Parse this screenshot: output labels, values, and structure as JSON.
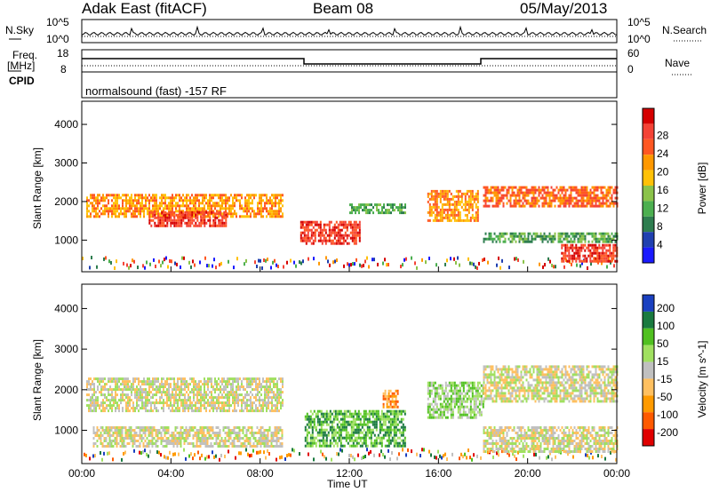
{
  "header": {
    "station": "Adak East (fitACF)",
    "beam": "Beam 08",
    "date": "05/May/2013"
  },
  "strip_labels": {
    "nsky": "N.Sky",
    "nsky_ticks": [
      "10^5",
      "10^0"
    ],
    "nsearch": "N.Search",
    "nsearch_ticks": [
      "10^5",
      "10^0"
    ],
    "freq": "Freq.",
    "freq_unit": "[MHz]",
    "freq_ticks": [
      "18",
      "8"
    ],
    "nave": "Nave",
    "nave_ticks": [
      "60",
      "0"
    ],
    "cpid": "CPID",
    "cpid_value": "normalsound (fast) -157 RF"
  },
  "colors": {
    "power": [
      "#1a1aff",
      "#2040b0",
      "#2e7d4f",
      "#4caf50",
      "#8bc34a",
      "#ffc107",
      "#ff9800",
      "#ff5722",
      "#f44336",
      "#d50000"
    ],
    "velocity": [
      "#e00000",
      "#ff5a00",
      "#ff9a00",
      "#ffc060",
      "#c0c0c0",
      "#a0e060",
      "#50c020",
      "#1a7a40",
      "#1a40c0"
    ]
  },
  "chart_data": [
    {
      "type": "heatmap",
      "name": "power",
      "ylabel": "Slant Range [km]",
      "xlabel": "",
      "x_ticks": [
        "00:00",
        "04:00",
        "08:00",
        "12:00",
        "16:00",
        "20:00",
        "00:00"
      ],
      "y_ticks": [
        "1000",
        "2000",
        "3000",
        "4000"
      ],
      "ylim": [
        180,
        4600
      ],
      "xlim_hours": [
        0,
        24
      ],
      "colorbar_label": "Power [dB]",
      "colorbar_ticks": [
        "4",
        "8",
        "12",
        "16",
        "20",
        "24",
        "28"
      ],
      "bands": [
        {
          "t0": 0.2,
          "t1": 9.0,
          "r0": 1600,
          "r1": 2200,
          "level": 6
        },
        {
          "t0": 3.0,
          "t1": 6.5,
          "r0": 1400,
          "r1": 1750,
          "level": 8
        },
        {
          "t0": 9.8,
          "t1": 12.5,
          "r0": 900,
          "r1": 1500,
          "level": 8
        },
        {
          "t0": 12.0,
          "t1": 14.5,
          "r0": 1700,
          "r1": 1950,
          "level": 3
        },
        {
          "t0": 15.5,
          "t1": 17.8,
          "r0": 1500,
          "r1": 2300,
          "level": 6
        },
        {
          "t0": 18.0,
          "t1": 24.0,
          "r0": 1900,
          "r1": 2400,
          "level": 7
        },
        {
          "t0": 18.0,
          "t1": 24.0,
          "r0": 950,
          "r1": 1200,
          "level": 3
        },
        {
          "t0": 21.5,
          "t1": 24.0,
          "r0": 450,
          "r1": 900,
          "level": 8
        }
      ]
    },
    {
      "type": "heatmap",
      "name": "velocity",
      "ylabel": "Slant Range [km]",
      "xlabel": "Time UT",
      "x_ticks": [
        "00:00",
        "04:00",
        "08:00",
        "12:00",
        "16:00",
        "20:00",
        "00:00"
      ],
      "y_ticks": [
        "1000",
        "2000",
        "3000",
        "4000"
      ],
      "ylim": [
        180,
        4600
      ],
      "xlim_hours": [
        0,
        24
      ],
      "colorbar_label": "Velocity [m s^-1]",
      "colorbar_ticks": [
        "200",
        "100",
        "50",
        "15",
        "-15",
        "-50",
        "-100",
        "-200"
      ],
      "bands": [
        {
          "t0": 0.2,
          "t1": 9.0,
          "r0": 1500,
          "r1": 2300,
          "level": 4
        },
        {
          "t0": 0.5,
          "t1": 9.0,
          "r0": 600,
          "r1": 1100,
          "level": 4
        },
        {
          "t0": 10.0,
          "t1": 14.5,
          "r0": 600,
          "r1": 1500,
          "level": 6
        },
        {
          "t0": 15.5,
          "t1": 18.0,
          "r0": 1300,
          "r1": 2200,
          "level": 5
        },
        {
          "t0": 18.0,
          "t1": 24.0,
          "r0": 1700,
          "r1": 2600,
          "level": 4
        },
        {
          "t0": 18.0,
          "t1": 24.0,
          "r0": 500,
          "r1": 1100,
          "level": 4
        },
        {
          "t0": 13.5,
          "t1": 14.2,
          "r0": 1600,
          "r1": 2000,
          "level": 2
        }
      ]
    }
  ]
}
